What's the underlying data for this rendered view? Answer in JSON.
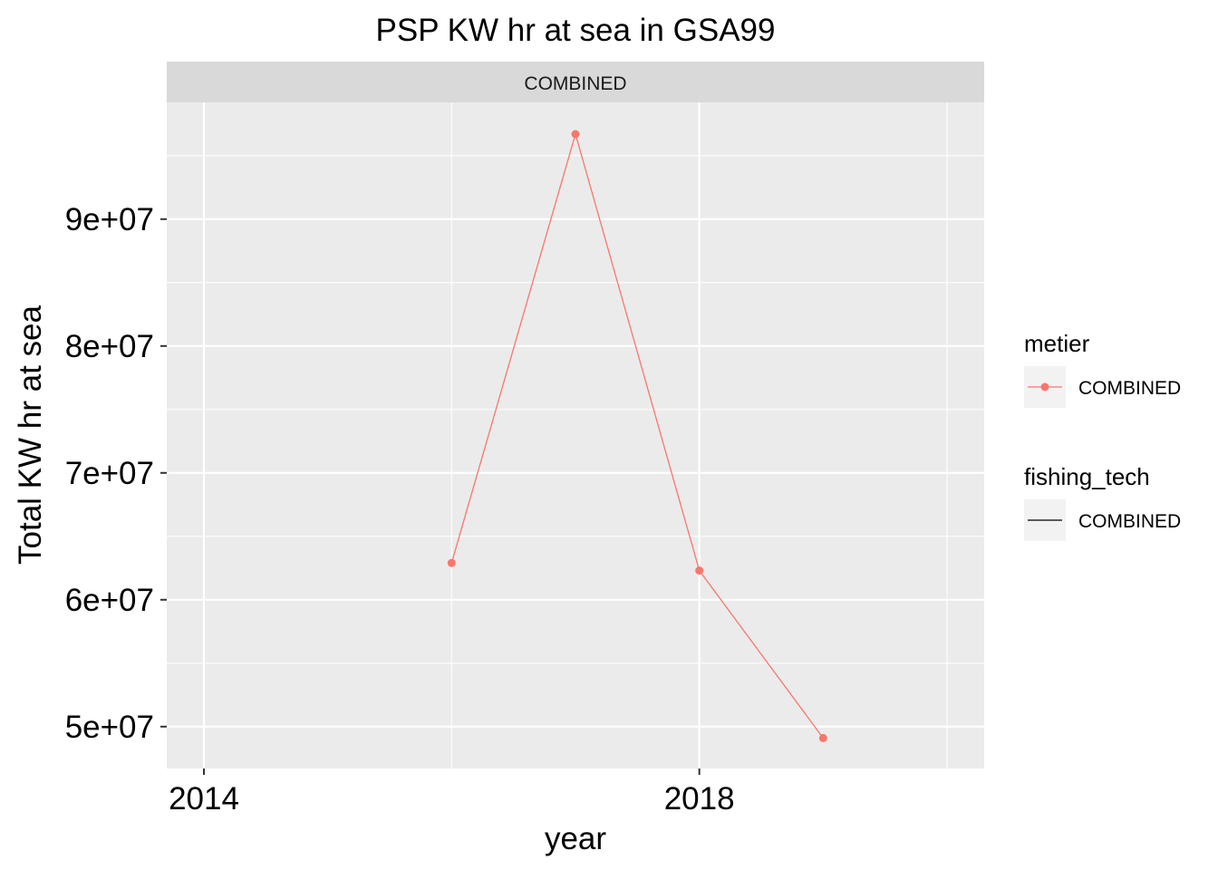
{
  "chart_data": {
    "type": "line",
    "title": "PSP KW hr at sea in GSA99",
    "facet_label": "COMBINED",
    "xlabel": "year",
    "ylabel": "Total KW hr at sea",
    "x_ticks": [
      {
        "value": 2014,
        "label": "2014"
      },
      {
        "value": 2018,
        "label": "2018"
      }
    ],
    "y_ticks": [
      {
        "value": 50000000,
        "label": "5e+07"
      },
      {
        "value": 60000000,
        "label": "6e+07"
      },
      {
        "value": 70000000,
        "label": "7e+07"
      },
      {
        "value": 80000000,
        "label": "8e+07"
      },
      {
        "value": 90000000,
        "label": "9e+07"
      }
    ],
    "xlim": [
      2013.7,
      2020.3
    ],
    "ylim": [
      46700000,
      99200000
    ],
    "grid": true,
    "series": [
      {
        "name": "COMBINED",
        "color": "#F8766D",
        "x": [
          2016,
          2017,
          2018,
          2019
        ],
        "y": [
          62900000,
          96700000,
          62300000,
          49100000
        ]
      }
    ],
    "legend": {
      "position": "right",
      "groups": [
        {
          "title": "metier",
          "key": "line-point",
          "color": "#F8766D",
          "label": "COMBINED"
        },
        {
          "title": "fishing_tech",
          "key": "line",
          "color": "#000000",
          "label": "COMBINED"
        }
      ]
    }
  }
}
